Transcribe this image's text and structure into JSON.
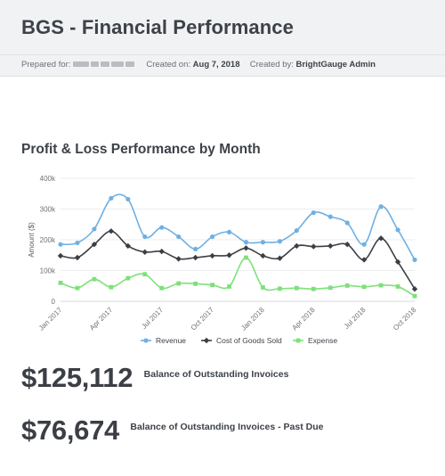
{
  "report": {
    "title": "BGS - Financial Performance",
    "prepared_for_label": "Prepared for:",
    "created_on_label": "Created on:",
    "created_on": "Aug 7, 2018",
    "created_by_label": "Created by:",
    "created_by": "BrightGauge Admin"
  },
  "chart_title": "Profit & Loss Performance by Month",
  "chart_data": {
    "type": "line",
    "title": "Profit & Loss Performance by Month",
    "xlabel": "",
    "ylabel": "Amount ($)",
    "ylim": [
      0,
      400000
    ],
    "yticks": [
      0,
      100000,
      200000,
      300000,
      400000
    ],
    "ytick_labels": [
      "0",
      "100k",
      "200k",
      "300k",
      "400k"
    ],
    "x": [
      "Jan 2017",
      "Feb 2017",
      "Mar 2017",
      "Apr 2017",
      "May 2017",
      "Jun 2017",
      "Jul 2017",
      "Aug 2017",
      "Sep 2017",
      "Oct 2017",
      "Nov 2017",
      "Dec 2017",
      "Jan 2018",
      "Feb 2018",
      "Mar 2018",
      "Apr 2018",
      "May 2018",
      "Jun 2018",
      "Jul 2018",
      "Aug 2018",
      "Sep 2018",
      "Oct 2018"
    ],
    "xtick_labels": [
      "Jan 2017",
      "Apr 2017",
      "Jul 2017",
      "Oct 2017",
      "Jan 2018",
      "Apr 2018",
      "Jul 2018",
      "Oct 2018"
    ],
    "xtick_index": [
      0,
      3,
      6,
      9,
      12,
      15,
      18,
      21
    ],
    "grid": true,
    "legend_position": "bottom",
    "series": [
      {
        "name": "Revenue",
        "color": "#6fb0e4",
        "marker": "circle",
        "values": [
          185000,
          190000,
          235000,
          335000,
          332000,
          210000,
          240000,
          210000,
          170000,
          210000,
          225000,
          192000,
          192000,
          195000,
          230000,
          288000,
          275000,
          255000,
          185000,
          308000,
          232000,
          135000
        ]
      },
      {
        "name": "Cost of Goods Sold",
        "color": "#3b3f45",
        "marker": "diamond",
        "values": [
          148000,
          142000,
          185000,
          228000,
          180000,
          160000,
          162000,
          138000,
          142000,
          148000,
          150000,
          173000,
          148000,
          140000,
          180000,
          178000,
          180000,
          185000,
          135000,
          205000,
          128000,
          40000
        ]
      },
      {
        "name": "Expense",
        "color": "#7fe07a",
        "marker": "square",
        "values": [
          60000,
          43000,
          72000,
          46000,
          75000,
          88000,
          43000,
          58000,
          57000,
          53000,
          48000,
          142000,
          45000,
          41000,
          43000,
          40000,
          44000,
          51000,
          47000,
          52000,
          48000,
          17000
        ]
      }
    ]
  },
  "kpis": [
    {
      "value": "$125,112",
      "label": "Balance of Outstanding Invoices"
    },
    {
      "value": "$76,674",
      "label": "Balance of Outstanding Invoices - Past Due"
    }
  ]
}
